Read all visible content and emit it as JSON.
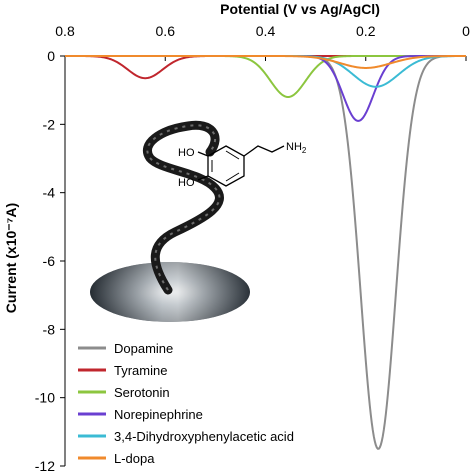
{
  "chart_data": {
    "type": "line",
    "xlabel": "Potential (V vs Ag/AgCl)",
    "ylabel": "Current (x10⁻⁷A)",
    "xlim": [
      0.8,
      0.0
    ],
    "ylim": [
      -12,
      0
    ],
    "x_axis_position": "top",
    "x_ticks": [
      "0.8",
      "0.6",
      "0.4",
      "0.2",
      "0"
    ],
    "x_tick_values": [
      0.8,
      0.6,
      0.4,
      0.2,
      0.0
    ],
    "y_ticks": [
      "0",
      "-2",
      "-4",
      "-6",
      "-8",
      "-10",
      "-12"
    ],
    "y_tick_values": [
      0,
      -2,
      -4,
      -6,
      -8,
      -10,
      -12
    ],
    "grid": false,
    "legend_position": "bottom-left",
    "series": [
      {
        "name": "Dopamine",
        "color": "#8c8c8c",
        "peak_x": 0.175,
        "peak_y": -11.5,
        "width": 0.035
      },
      {
        "name": "Tyramine",
        "color": "#c0262d",
        "peak_x": 0.64,
        "peak_y": -0.65,
        "width": 0.035
      },
      {
        "name": "Serotonin",
        "color": "#8cc63f",
        "peak_x": 0.355,
        "peak_y": -1.2,
        "width": 0.035
      },
      {
        "name": "Norepinephrine",
        "color": "#6a3fd1",
        "peak_x": 0.215,
        "peak_y": -1.9,
        "width": 0.03
      },
      {
        "name": "3,4-Dihydroxyphenylacetic acid",
        "color": "#3bbbd4",
        "peak_x": 0.18,
        "peak_y": -0.9,
        "width": 0.045
      },
      {
        "name": "L-dopa",
        "color": "#f08a2c",
        "peak_x": 0.2,
        "peak_y": -0.35,
        "width": 0.05
      }
    ]
  },
  "molecule": {
    "ho_top": "HO",
    "ho_bottom": "HO",
    "amine": "NH",
    "amine_sub": "2"
  }
}
